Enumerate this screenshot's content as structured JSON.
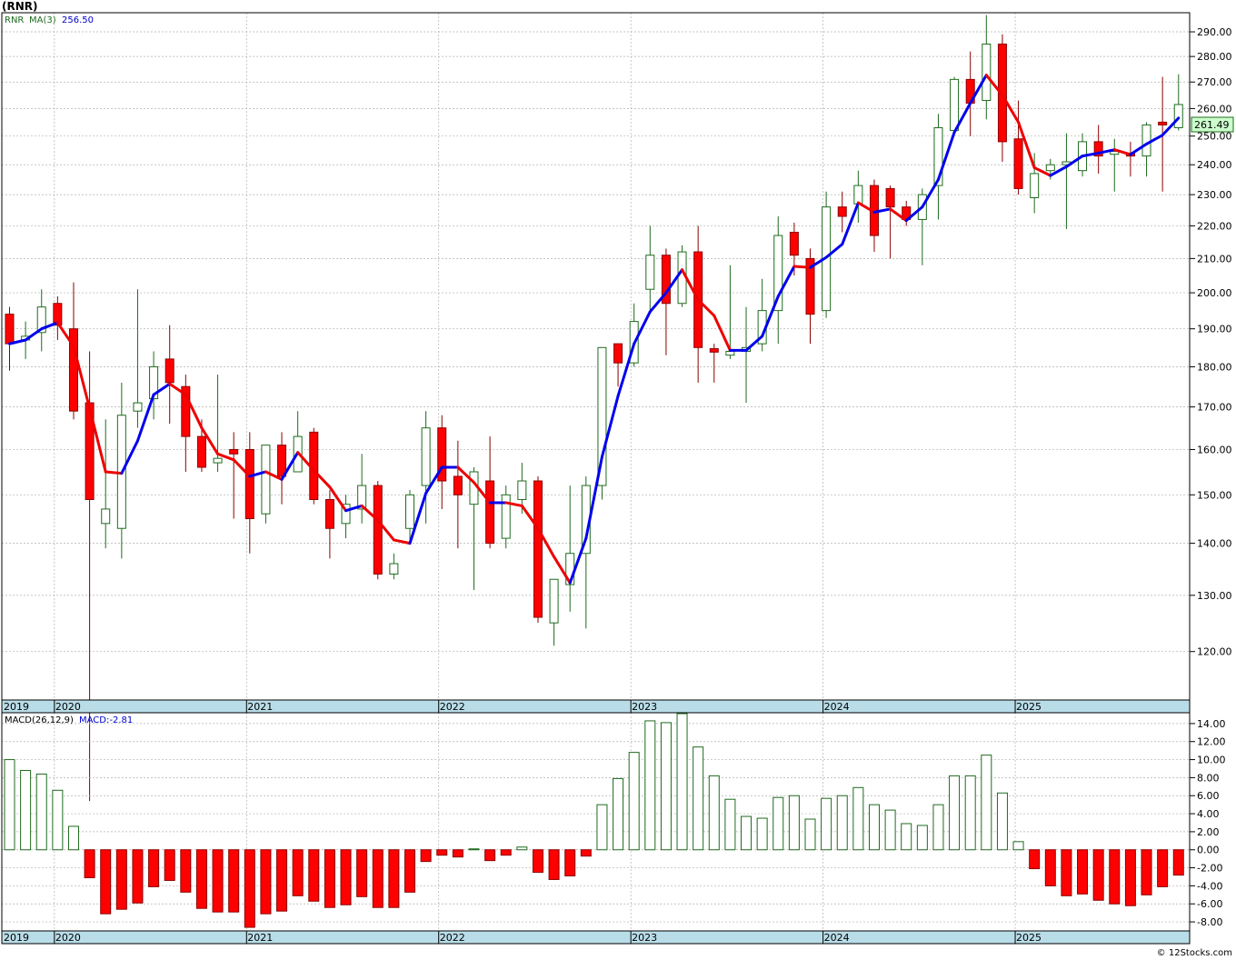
{
  "header": {
    "title": "(RNR)"
  },
  "price_legend": {
    "symbol": "RNR",
    "ma_label": "MA(3)",
    "ma_value": "256.50"
  },
  "macd_legend": {
    "label": "MACD(26,12,9)",
    "value": "MACD:-2.81"
  },
  "last_price": "261.49",
  "footer": {
    "copyright": "© 12Stocks.com"
  },
  "colors": {
    "up": "#ffffff",
    "up_border": "#1f6b1f",
    "down": "#ff0000",
    "down_border": "#8b0000",
    "ma_up": "#0000ee",
    "ma_down": "#ee0000",
    "band": "#b9dde8",
    "grid": "#b0b0b0",
    "badge": "#ccffcc"
  },
  "chart_data": [
    {
      "type": "candlestick",
      "title": "(RNR)",
      "frequency": "monthly",
      "ylim": [
        112,
        298
      ],
      "yscale": "log",
      "yticks": [
        120,
        130,
        140,
        150,
        160,
        170,
        180,
        190,
        200,
        210,
        220,
        230,
        240,
        250,
        260,
        270,
        280,
        290
      ],
      "ytick_labels": [
        "120.00",
        "130.00",
        "140.00",
        "150.00",
        "160.00",
        "170.00",
        "180.00",
        "190.00",
        "200.00",
        "210.00",
        "220.00",
        "230.00",
        "240.00",
        "250.00",
        "260.00",
        "270.00",
        "280.00",
        "290.00"
      ],
      "x_labels": [
        "2019",
        "2020",
        "2021",
        "2022",
        "2023",
        "2024",
        "2025"
      ],
      "ma_period": 3,
      "candles": [
        {
          "o": 194,
          "h": 196,
          "l": 179,
          "c": 186
        },
        {
          "o": 187,
          "h": 192,
          "l": 182,
          "c": 188
        },
        {
          "o": 189,
          "h": 201,
          "l": 184,
          "c": 196
        },
        {
          "o": 197,
          "h": 199,
          "l": 187,
          "c": 191
        },
        {
          "o": 190,
          "h": 203,
          "l": 167,
          "c": 169
        },
        {
          "o": 171,
          "h": 184,
          "l": 97,
          "c": 149
        },
        {
          "o": 144,
          "h": 167,
          "l": 139,
          "c": 147
        },
        {
          "o": 143,
          "h": 176,
          "l": 137,
          "c": 168
        },
        {
          "o": 169,
          "h": 201,
          "l": 165,
          "c": 171
        },
        {
          "o": 172,
          "h": 184,
          "l": 167,
          "c": 180
        },
        {
          "o": 182,
          "h": 191,
          "l": 166,
          "c": 176
        },
        {
          "o": 175,
          "h": 178,
          "l": 155,
          "c": 163
        },
        {
          "o": 163,
          "h": 167,
          "l": 155,
          "c": 156
        },
        {
          "o": 157,
          "h": 178,
          "l": 155,
          "c": 158
        },
        {
          "o": 160,
          "h": 164,
          "l": 145,
          "c": 159
        },
        {
          "o": 160,
          "h": 164,
          "l": 138,
          "c": 145
        },
        {
          "o": 146,
          "h": 161,
          "l": 144,
          "c": 161
        },
        {
          "o": 161,
          "h": 164,
          "l": 148,
          "c": 154
        },
        {
          "o": 155,
          "h": 169,
          "l": 155,
          "c": 163
        },
        {
          "o": 164,
          "h": 165,
          "l": 148,
          "c": 149
        },
        {
          "o": 149,
          "h": 151,
          "l": 137,
          "c": 143
        },
        {
          "o": 144,
          "h": 150,
          "l": 141,
          "c": 148
        },
        {
          "o": 147,
          "h": 159,
          "l": 144,
          "c": 152
        },
        {
          "o": 152,
          "h": 153,
          "l": 133,
          "c": 134
        },
        {
          "o": 134,
          "h": 138,
          "l": 133,
          "c": 136
        },
        {
          "o": 143,
          "h": 151,
          "l": 140,
          "c": 150
        },
        {
          "o": 152,
          "h": 169,
          "l": 144,
          "c": 165
        },
        {
          "o": 165,
          "h": 168,
          "l": 147,
          "c": 153
        },
        {
          "o": 154,
          "h": 162,
          "l": 139,
          "c": 150
        },
        {
          "o": 148,
          "h": 156,
          "l": 131,
          "c": 155
        },
        {
          "o": 153,
          "h": 163,
          "l": 139,
          "c": 140
        },
        {
          "o": 141,
          "h": 152,
          "l": 139,
          "c": 150
        },
        {
          "o": 149,
          "h": 157,
          "l": 146,
          "c": 153
        },
        {
          "o": 153,
          "h": 154,
          "l": 125,
          "c": 126
        },
        {
          "o": 125,
          "h": 133,
          "l": 121,
          "c": 133
        },
        {
          "o": 132,
          "h": 152,
          "l": 127,
          "c": 138
        },
        {
          "o": 138,
          "h": 154,
          "l": 124,
          "c": 152
        },
        {
          "o": 152,
          "h": 185,
          "l": 149,
          "c": 185
        },
        {
          "o": 186,
          "h": 186,
          "l": 175,
          "c": 181
        },
        {
          "o": 181,
          "h": 197,
          "l": 180,
          "c": 192
        },
        {
          "o": 201,
          "h": 220,
          "l": 195,
          "c": 211
        },
        {
          "o": 211,
          "h": 213,
          "l": 183,
          "c": 197
        },
        {
          "o": 197,
          "h": 214,
          "l": 196,
          "c": 212
        },
        {
          "o": 212,
          "h": 220,
          "l": 176,
          "c": 185
        },
        {
          "o": 184.7,
          "h": 186,
          "l": 176,
          "c": 183.8
        },
        {
          "o": 183,
          "h": 208,
          "l": 182,
          "c": 184
        },
        {
          "o": 184,
          "h": 196,
          "l": 171,
          "c": 185
        },
        {
          "o": 186,
          "h": 204,
          "l": 184,
          "c": 195
        },
        {
          "o": 195,
          "h": 223,
          "l": 186,
          "c": 217
        },
        {
          "o": 218,
          "h": 221,
          "l": 205,
          "c": 211
        },
        {
          "o": 210,
          "h": 213,
          "l": 186,
          "c": 194
        },
        {
          "o": 195,
          "h": 231,
          "l": 193,
          "c": 226
        },
        {
          "o": 226,
          "h": 231,
          "l": 218,
          "c": 223
        },
        {
          "o": 227,
          "h": 238,
          "l": 221,
          "c": 233
        },
        {
          "o": 233,
          "h": 235,
          "l": 212,
          "c": 217
        },
        {
          "o": 232,
          "h": 233,
          "l": 210,
          "c": 226
        },
        {
          "o": 226,
          "h": 228,
          "l": 220,
          "c": 222
        },
        {
          "o": 222,
          "h": 232,
          "l": 208,
          "c": 230
        },
        {
          "o": 233,
          "h": 258,
          "l": 222,
          "c": 253
        },
        {
          "o": 252,
          "h": 272,
          "l": 253,
          "c": 271
        },
        {
          "o": 271,
          "h": 282,
          "l": 250,
          "c": 262
        },
        {
          "o": 263,
          "h": 297,
          "l": 256,
          "c": 285
        },
        {
          "o": 285,
          "h": 289,
          "l": 241,
          "c": 248
        },
        {
          "o": 249,
          "h": 263,
          "l": 230,
          "c": 232
        },
        {
          "o": 229,
          "h": 244,
          "l": 224,
          "c": 237
        },
        {
          "o": 238,
          "h": 242,
          "l": 235,
          "c": 240
        },
        {
          "o": 240,
          "h": 251,
          "l": 219,
          "c": 241
        },
        {
          "o": 238,
          "h": 251,
          "l": 236,
          "c": 248
        },
        {
          "o": 248,
          "h": 254,
          "l": 237,
          "c": 243
        },
        {
          "o": 243.6,
          "h": 249,
          "l": 231,
          "c": 244.6
        },
        {
          "o": 244,
          "h": 248,
          "l": 236,
          "c": 243
        },
        {
          "o": 243,
          "h": 255,
          "l": 236,
          "c": 254
        },
        {
          "o": 255,
          "h": 272,
          "l": 231,
          "c": 254
        },
        {
          "o": 253,
          "h": 273,
          "l": 252,
          "c": 261.49
        }
      ]
    },
    {
      "type": "bar",
      "title": "MACD(26,12,9)",
      "ylim": [
        -9,
        15.2
      ],
      "yticks": [
        -8,
        -6,
        -4,
        -2,
        0,
        2,
        4,
        6,
        8,
        10,
        12,
        14
      ],
      "ytick_labels": [
        "-8.00",
        "-6.00",
        "-4.00",
        "-2.00",
        "0.00",
        "2.00",
        "4.00",
        "6.00",
        "8.00",
        "10.00",
        "12.00",
        "14.00"
      ],
      "x_labels": [
        "2019",
        "2020",
        "2021",
        "2022",
        "2023",
        "2024",
        "2025"
      ],
      "values": [
        10,
        8.8,
        8.4,
        6.6,
        2.6,
        -3.1,
        -7.1,
        -6.6,
        -5.9,
        -4.1,
        -3.4,
        -4.7,
        -6.5,
        -6.9,
        -6.9,
        -8.6,
        -7.1,
        -6.8,
        -5.1,
        -5.7,
        -6.4,
        -6.1,
        -5.2,
        -6.4,
        -6.4,
        -4.7,
        -1.3,
        -0.6,
        -0.8,
        0.1,
        -1.2,
        -0.6,
        0.3,
        -2.5,
        -3.3,
        -2.9,
        -0.7,
        5,
        7.9,
        10.8,
        14.3,
        14.1,
        15.1,
        11.4,
        8.2,
        5.6,
        3.7,
        3.5,
        5.8,
        6,
        3.4,
        5.7,
        6,
        6.9,
        5,
        4.4,
        2.9,
        2.7,
        5,
        8.2,
        8.2,
        10.5,
        6.3,
        0.9,
        -2.1,
        -4,
        -5.1,
        -4.9,
        -5.6,
        -6,
        -6.2,
        -5,
        -4.1,
        -2.81
      ]
    }
  ]
}
